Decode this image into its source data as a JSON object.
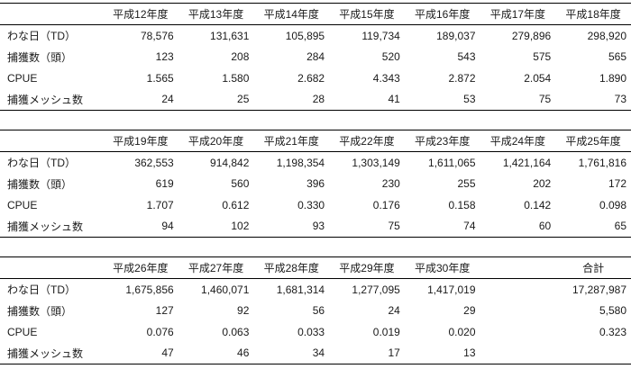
{
  "colors": {
    "background": "#ffffff",
    "text": "#1a1a1a",
    "rule_lines": "#000000"
  },
  "table": {
    "row_labels": [
      "わな日（TD）",
      "捕獲数（頭）",
      "CPUE",
      "捕獲メッシュ数"
    ],
    "sections": [
      {
        "headers": [
          "平成12年度",
          "平成13年度",
          "平成14年度",
          "平成15年度",
          "平成16年度",
          "平成17年度",
          "平成18年度"
        ],
        "rows": [
          [
            "78,576",
            "131,631",
            "105,895",
            "119,734",
            "189,037",
            "279,896",
            "298,920"
          ],
          [
            "123",
            "208",
            "284",
            "520",
            "543",
            "575",
            "565"
          ],
          [
            "1.565",
            "1.580",
            "2.682",
            "4.343",
            "2.872",
            "2.054",
            "1.890"
          ],
          [
            "24",
            "25",
            "28",
            "41",
            "53",
            "75",
            "73"
          ]
        ]
      },
      {
        "headers": [
          "平成19年度",
          "平成20年度",
          "平成21年度",
          "平成22年度",
          "平成23年度",
          "平成24年度",
          "平成25年度"
        ],
        "rows": [
          [
            "362,553",
            "914,842",
            "1,198,354",
            "1,303,149",
            "1,611,065",
            "1,421,164",
            "1,761,816"
          ],
          [
            "619",
            "560",
            "396",
            "230",
            "255",
            "202",
            "172"
          ],
          [
            "1.707",
            "0.612",
            "0.330",
            "0.176",
            "0.158",
            "0.142",
            "0.098"
          ],
          [
            "94",
            "102",
            "93",
            "75",
            "74",
            "60",
            "65"
          ]
        ]
      },
      {
        "headers": [
          "平成26年度",
          "平成27年度",
          "平成28年度",
          "平成29年度",
          "平成30年度",
          "",
          "合計"
        ],
        "rows": [
          [
            "1,675,856",
            "1,460,071",
            "1,681,314",
            "1,277,095",
            "1,417,019",
            "",
            "17,287,987"
          ],
          [
            "127",
            "92",
            "56",
            "24",
            "29",
            "",
            "5,580"
          ],
          [
            "0.076",
            "0.063",
            "0.033",
            "0.019",
            "0.020",
            "",
            "0.323"
          ],
          [
            "47",
            "46",
            "34",
            "17",
            "13",
            "",
            ""
          ]
        ]
      }
    ]
  }
}
